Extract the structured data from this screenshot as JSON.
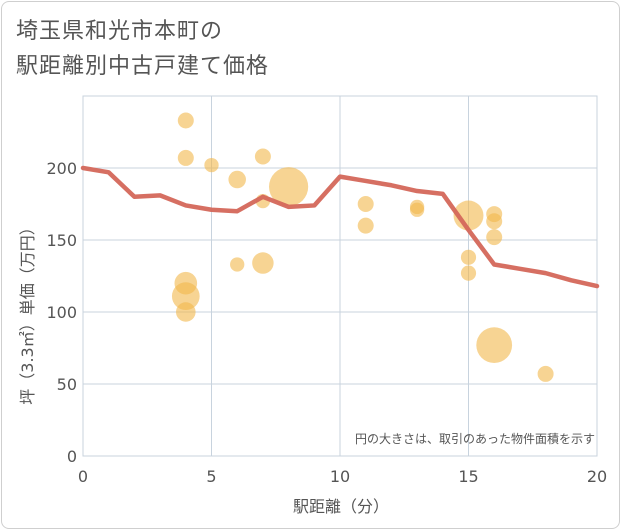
{
  "title": "埼玉県和光市本町の\n駅距離別中古戸建て価格",
  "chart_data": {
    "type": "scatter",
    "title": "埼玉県和光市本町の駅距離別中古戸建て価格",
    "xlabel": "駅距離（分）",
    "ylabel": "坪（3.3㎡）単価（万円）",
    "xlim": [
      0,
      20
    ],
    "ylim": [
      0,
      250
    ],
    "xticks": [
      0,
      5,
      10,
      15,
      20
    ],
    "yticks": [
      0,
      50,
      100,
      150,
      200
    ],
    "grid": true,
    "note": "円の大きさは、取引のあった物件面積を示す",
    "colors": {
      "bubble": "#f2b84b",
      "line": "#d4675a",
      "grid": "#c8d3de"
    },
    "bubbles": [
      {
        "x": 4,
        "y": 233,
        "size": 1
      },
      {
        "x": 4,
        "y": 207,
        "size": 1
      },
      {
        "x": 4,
        "y": 120,
        "size": 2
      },
      {
        "x": 4,
        "y": 111,
        "size": 3
      },
      {
        "x": 4,
        "y": 100,
        "size": 1.5
      },
      {
        "x": 5,
        "y": 202,
        "size": 0.8
      },
      {
        "x": 6,
        "y": 192,
        "size": 1.2
      },
      {
        "x": 6,
        "y": 133,
        "size": 0.8
      },
      {
        "x": 7,
        "y": 208,
        "size": 1
      },
      {
        "x": 7,
        "y": 177,
        "size": 0.8
      },
      {
        "x": 7,
        "y": 134,
        "size": 1.8
      },
      {
        "x": 8,
        "y": 187,
        "size": 6
      },
      {
        "x": 11,
        "y": 175,
        "size": 1
      },
      {
        "x": 11,
        "y": 160,
        "size": 1
      },
      {
        "x": 13,
        "y": 173,
        "size": 0.8
      },
      {
        "x": 13,
        "y": 171,
        "size": 0.8
      },
      {
        "x": 15,
        "y": 167,
        "size": 3.5
      },
      {
        "x": 15,
        "y": 138,
        "size": 0.9
      },
      {
        "x": 15,
        "y": 127,
        "size": 0.9
      },
      {
        "x": 16,
        "y": 168,
        "size": 1
      },
      {
        "x": 16,
        "y": 163,
        "size": 1
      },
      {
        "x": 16,
        "y": 152,
        "size": 1
      },
      {
        "x": 16,
        "y": 77,
        "size": 5
      },
      {
        "x": 18,
        "y": 57,
        "size": 1
      }
    ],
    "series": [
      {
        "x": [
          0,
          1,
          2,
          3,
          4,
          5,
          6,
          7,
          8,
          9,
          10,
          11,
          12,
          13,
          14,
          15,
          16,
          17,
          18,
          19,
          20
        ],
        "values": [
          200,
          197,
          180,
          181,
          174,
          171,
          170,
          180,
          173,
          174,
          194,
          191,
          188,
          184,
          182,
          157,
          133,
          130,
          127,
          122,
          118
        ]
      }
    ]
  }
}
